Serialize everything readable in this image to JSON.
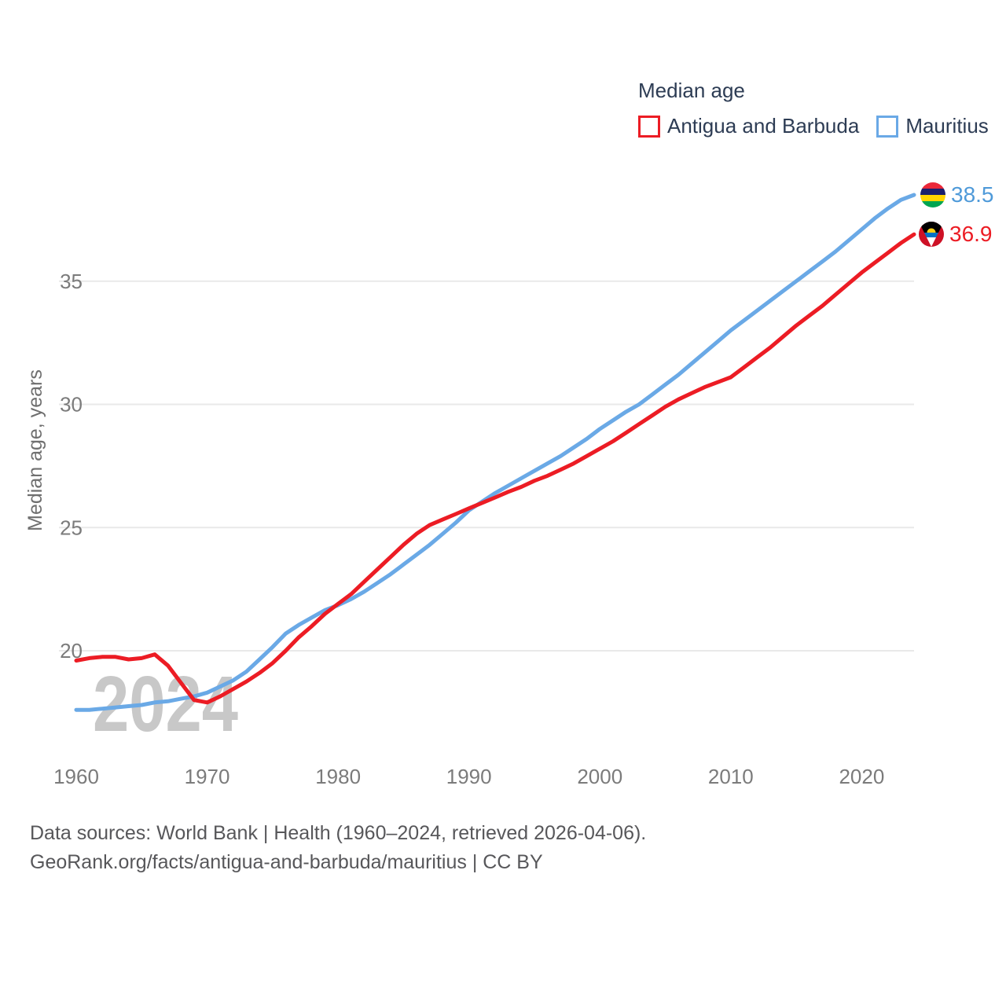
{
  "legend": {
    "title": "Median age",
    "items": [
      {
        "label": "Antigua and Barbuda",
        "color": "#ec1c24"
      },
      {
        "label": "Mauritius",
        "color": "#6aa9e6"
      }
    ]
  },
  "y_axis": {
    "label": "Median age, years",
    "ticks": [
      20,
      25,
      30,
      35
    ]
  },
  "x_axis": {
    "ticks": [
      1960,
      1970,
      1980,
      1990,
      2000,
      2010,
      2020
    ]
  },
  "watermark": "2024",
  "end_labels": [
    {
      "series": "Mauritius",
      "value": "38.5",
      "flag": "mauritius-flag"
    },
    {
      "series": "Antigua and Barbuda",
      "value": "36.9",
      "flag": "antigua-and-barbuda-flag"
    }
  ],
  "footer": {
    "line1": "Data sources: World Bank | Health (1960–2024, retrieved 2026-04-06).",
    "line2": "GeoRank.org/facts/antigua-and-barbuda/mauritius | CC BY"
  },
  "chart_data": {
    "type": "line",
    "title": "Median age",
    "xlabel": "",
    "ylabel": "Median age, years",
    "xlim": [
      1960,
      2024
    ],
    "ylim": [
      17,
      39.5
    ],
    "grid": "horizontal-only",
    "legend_position": "top-right",
    "x": [
      1960,
      1961,
      1962,
      1963,
      1964,
      1965,
      1966,
      1967,
      1968,
      1969,
      1970,
      1971,
      1972,
      1973,
      1974,
      1975,
      1976,
      1977,
      1978,
      1979,
      1980,
      1981,
      1982,
      1983,
      1984,
      1985,
      1986,
      1987,
      1988,
      1989,
      1990,
      1991,
      1992,
      1993,
      1994,
      1995,
      1996,
      1997,
      1998,
      1999,
      2000,
      2001,
      2002,
      2003,
      2004,
      2005,
      2006,
      2007,
      2008,
      2009,
      2010,
      2011,
      2012,
      2013,
      2014,
      2015,
      2016,
      2017,
      2018,
      2019,
      2020,
      2021,
      2022,
      2023,
      2024
    ],
    "series": [
      {
        "name": "Antigua and Barbuda",
        "color": "#ec1c24",
        "end_label": "36.9",
        "values": [
          19.6,
          19.7,
          19.75,
          19.75,
          19.65,
          19.7,
          19.85,
          19.4,
          18.7,
          18.0,
          17.9,
          18.15,
          18.45,
          18.75,
          19.1,
          19.5,
          20.0,
          20.55,
          21.0,
          21.5,
          21.9,
          22.3,
          22.8,
          23.3,
          23.8,
          24.3,
          24.75,
          25.1,
          25.33,
          25.55,
          25.78,
          26.0,
          26.22,
          26.45,
          26.65,
          26.9,
          27.1,
          27.35,
          27.6,
          27.9,
          28.2,
          28.5,
          28.85,
          29.2,
          29.55,
          29.9,
          30.2,
          30.45,
          30.7,
          30.9,
          31.1,
          31.5,
          31.9,
          32.3,
          32.75,
          33.2,
          33.6,
          34.0,
          34.45,
          34.9,
          35.35,
          35.75,
          36.15,
          36.55,
          36.9
        ]
      },
      {
        "name": "Mauritius",
        "color": "#6aa9e6",
        "end_label": "38.5",
        "values": [
          17.6,
          17.6,
          17.65,
          17.7,
          17.75,
          17.8,
          17.9,
          17.95,
          18.05,
          18.15,
          18.3,
          18.55,
          18.8,
          19.15,
          19.65,
          20.15,
          20.7,
          21.05,
          21.35,
          21.65,
          21.85,
          22.1,
          22.4,
          22.75,
          23.1,
          23.5,
          23.9,
          24.3,
          24.75,
          25.2,
          25.7,
          26.05,
          26.4,
          26.7,
          27.0,
          27.3,
          27.6,
          27.9,
          28.25,
          28.6,
          29.0,
          29.35,
          29.7,
          30.0,
          30.4,
          30.8,
          31.2,
          31.65,
          32.1,
          32.55,
          33.0,
          33.4,
          33.8,
          34.2,
          34.6,
          35.0,
          35.4,
          35.8,
          36.2,
          36.65,
          37.1,
          37.55,
          37.95,
          38.3,
          38.5
        ]
      }
    ]
  }
}
